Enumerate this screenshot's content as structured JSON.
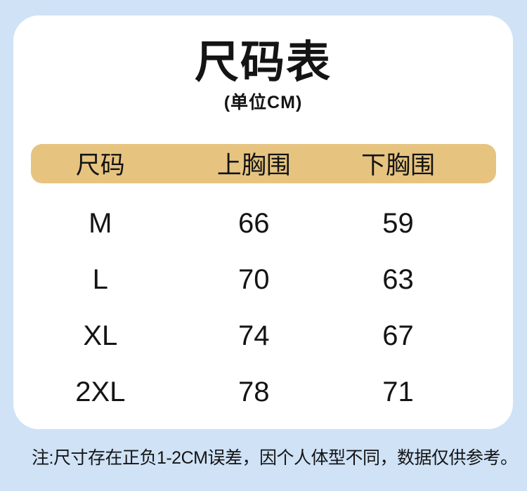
{
  "colors": {
    "background": "#cfe2f6",
    "card": "#ffffff",
    "header_bar": "#e6c480",
    "text": "#141414"
  },
  "header": {
    "title": "尺码表",
    "subtitle": "(单位CM)"
  },
  "table": {
    "columns": [
      "尺码",
      "上胸围",
      "下胸围"
    ],
    "rows": [
      {
        "size": "M",
        "upper_bust": "66",
        "lower_bust": "59"
      },
      {
        "size": "L",
        "upper_bust": "70",
        "lower_bust": "63"
      },
      {
        "size": "XL",
        "upper_bust": "74",
        "lower_bust": "67"
      },
      {
        "size": "2XL",
        "upper_bust": "78",
        "lower_bust": "71"
      }
    ]
  },
  "footer": {
    "note": "注:尺寸存在正负1-2CM误差，因个人体型不同，数据仅供参考。"
  },
  "chart_data": {
    "type": "table",
    "title": "尺码表",
    "subtitle": "(单位CM)",
    "unit": "CM",
    "columns": [
      "尺码",
      "上胸围",
      "下胸围"
    ],
    "rows": [
      [
        "M",
        66,
        59
      ],
      [
        "L",
        70,
        63
      ],
      [
        "XL",
        74,
        67
      ],
      [
        "2XL",
        78,
        71
      ]
    ],
    "note": "注:尺寸存在正负1-2CM误差，因个人体型不同，数据仅供参考。"
  }
}
